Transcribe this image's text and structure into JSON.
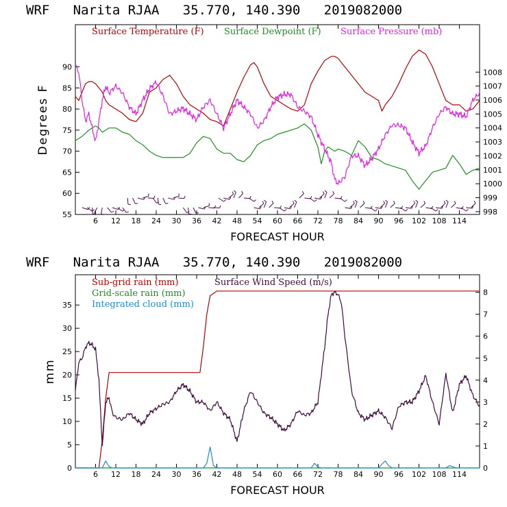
{
  "chart_data": [
    {
      "type": "line",
      "title": "WRF   Narita RJAA   35.770, 140.390   2019082000",
      "xlabel": "FORECAST HOUR",
      "ylabel": "Degrees F",
      "xlim": [
        0,
        120
      ],
      "ylim": [
        55,
        100
      ],
      "y2lim": [
        997.8,
        1011.4
      ],
      "xticks": [
        "6",
        "12",
        "18",
        "24",
        "30",
        "36",
        "42",
        "48",
        "54",
        "60",
        "66",
        "72",
        "78",
        "84",
        "90",
        "96",
        "102",
        "108",
        "114"
      ],
      "yticks": [
        "55",
        "60",
        "65",
        "70",
        "75",
        "80",
        "85",
        "90"
      ],
      "y2ticks": [
        "998",
        "999",
        "1000",
        "1001",
        "1002",
        "1003",
        "1004",
        "1005",
        "1006",
        "1007",
        "1008"
      ],
      "colors": {
        "temp": "#b30000",
        "dew": "#1f8c1f",
        "press": "#e020e0",
        "barb": "#4a0a4a"
      },
      "series": [
        {
          "name": "Surface Temperature (F)",
          "axis": "left",
          "x": [
            0,
            1,
            2,
            3,
            4,
            5,
            6,
            7,
            8,
            9,
            10,
            12,
            14,
            16,
            18,
            20,
            22,
            24,
            26,
            28,
            30,
            32,
            34,
            36,
            38,
            40,
            42,
            44,
            46,
            48,
            50,
            52,
            53,
            54,
            56,
            58,
            60,
            62,
            64,
            66,
            68,
            70,
            72,
            74,
            76,
            77,
            78,
            80,
            82,
            84,
            86,
            88,
            90,
            91,
            92,
            94,
            96,
            98,
            100,
            102,
            104,
            106,
            108,
            110,
            112,
            114,
            116,
            118,
            120
          ],
          "values": [
            83,
            82,
            84,
            86,
            86.5,
            86.5,
            86,
            85,
            84,
            82,
            81,
            80,
            79,
            77.5,
            77,
            79,
            84,
            85,
            87,
            88,
            86,
            83,
            81,
            80,
            79,
            77.5,
            77,
            76,
            80,
            84,
            87.5,
            90.5,
            91,
            90,
            86,
            83,
            82,
            81,
            80,
            79.5,
            81,
            86,
            89,
            91.5,
            92.5,
            92.5,
            92,
            90,
            88,
            86,
            84,
            83,
            82,
            79.5,
            81,
            83,
            86,
            89.5,
            92.5,
            94,
            93,
            90,
            86,
            82,
            81,
            81,
            79.5,
            80,
            82
          ]
        },
        {
          "name": "Surface Dewpoint (F)",
          "axis": "left",
          "x": [
            0,
            2,
            4,
            6,
            7,
            8,
            10,
            12,
            14,
            16,
            18,
            20,
            22,
            24,
            26,
            28,
            30,
            32,
            34,
            36,
            38,
            40,
            42,
            44,
            46,
            48,
            50,
            52,
            54,
            56,
            58,
            60,
            62,
            64,
            66,
            68,
            70,
            72,
            73,
            74,
            75,
            76,
            77,
            78,
            80,
            82,
            84,
            86,
            88,
            90,
            92,
            94,
            96,
            98,
            100,
            102,
            104,
            106,
            108,
            110,
            112,
            114,
            116,
            118,
            120
          ],
          "values": [
            72.5,
            73.5,
            75,
            76,
            75.5,
            74.5,
            75.5,
            75.5,
            74.5,
            74,
            72.5,
            71.5,
            70,
            69,
            68.5,
            68.5,
            68.5,
            68.5,
            69.5,
            72,
            73.5,
            73,
            70.5,
            69.5,
            69.5,
            68,
            67.5,
            69,
            71.5,
            72.5,
            73,
            74,
            74.5,
            75,
            75.5,
            76.5,
            75,
            71,
            67,
            70,
            71,
            70.5,
            70,
            70.5,
            70,
            69,
            72.5,
            71,
            68.5,
            68,
            67,
            66.5,
            66,
            65.5,
            63,
            61,
            63,
            65,
            65.5,
            66,
            69,
            67,
            64.5,
            65.5,
            66
          ]
        },
        {
          "name": "Surface Pressure (mb)",
          "axis": "right",
          "x": [
            0,
            1,
            2,
            3,
            4,
            5,
            6,
            7,
            8,
            9,
            10,
            12,
            14,
            16,
            18,
            20,
            22,
            24,
            26,
            28,
            30,
            32,
            34,
            36,
            38,
            40,
            42,
            44,
            46,
            48,
            50,
            52,
            54,
            56,
            58,
            60,
            62,
            64,
            66,
            68,
            70,
            72,
            74,
            76,
            77,
            78,
            80,
            82,
            84,
            86,
            88,
            90,
            92,
            94,
            96,
            98,
            100,
            102,
            104,
            106,
            108,
            110,
            112,
            114,
            116,
            118,
            120
          ],
          "values": [
            1008.5,
            1008,
            1006,
            1004.5,
            1005,
            1004,
            1003,
            1004.5,
            1006,
            1007,
            1006.5,
            1007,
            1006.5,
            1005.5,
            1005,
            1006,
            1006.8,
            1007.3,
            1006.3,
            1005,
            1005.2,
            1005.4,
            1005,
            1004.6,
            1005.5,
            1006,
            1005,
            1004,
            1005,
            1006,
            1005.5,
            1005,
            1004,
            1004.5,
            1005.5,
            1006.2,
            1006.4,
            1006.4,
            1005.5,
            1005.2,
            1004.8,
            1003.5,
            1002.5,
            1001.5,
            1000.3,
            1000,
            1000.5,
            1002,
            1002,
            1001.3,
            1001.8,
            1002.5,
            1003.5,
            1004.2,
            1004.2,
            1004,
            1003,
            1002.2,
            1002.7,
            1004,
            1005,
            1005.5,
            1005,
            1005,
            1004.8,
            1006,
            1006.5
          ]
        }
      ],
      "wind_barbs": "wind barbs drawn along the bottom of the panel"
    },
    {
      "type": "line",
      "title": "WRF   Narita RJAA   35.770, 140.390   2019082000",
      "xlabel": "FORECAST HOUR",
      "ylabel": "mm",
      "xlim": [
        0,
        120
      ],
      "ylim": [
        0,
        41.5
      ],
      "y2lim": [
        0,
        8.8
      ],
      "xticks": [
        "6",
        "12",
        "18",
        "24",
        "30",
        "36",
        "42",
        "48",
        "54",
        "60",
        "66",
        "72",
        "78",
        "84",
        "90",
        "96",
        "102",
        "108",
        "114"
      ],
      "yticks": [
        "0",
        "5",
        "10",
        "15",
        "20",
        "25",
        "30",
        "35"
      ],
      "y2ticks": [
        "0",
        "1",
        "2",
        "3",
        "4",
        "5",
        "6",
        "7",
        "8"
      ],
      "colors": {
        "subgrid": "#b30000",
        "grid": "#1f8c1f",
        "cloud": "#1a8ad4",
        "wind": "#3b0a3b"
      },
      "series": [
        {
          "name": "Sub-grid rain (mm)",
          "axis": "left",
          "x": [
            0,
            7,
            8,
            9,
            10,
            37,
            38,
            39,
            40,
            41,
            42,
            120
          ],
          "values": [
            0,
            0,
            6,
            15,
            20.5,
            20.5,
            26,
            33,
            37,
            37.5,
            38,
            38
          ]
        },
        {
          "name": "Grid-scale rain (mm)",
          "axis": "left",
          "x": [
            0,
            120
          ],
          "values": [
            0,
            0
          ]
        },
        {
          "name": "Integrated cloud (mm)",
          "axis": "left",
          "x": [
            0,
            8,
            9,
            10,
            11,
            38,
            39,
            40,
            41,
            42,
            70,
            71,
            72,
            73,
            90,
            91,
            92,
            93,
            94,
            110,
            111,
            112,
            113,
            120
          ],
          "values": [
            0,
            0,
            1.5,
            0.3,
            0,
            0,
            1,
            4.5,
            0.5,
            0,
            0,
            1,
            0.2,
            0,
            0,
            0.8,
            1.5,
            0.5,
            0,
            0,
            0.5,
            0.3,
            0,
            0
          ]
        },
        {
          "name": "Surface Wind Speed (m/s)",
          "axis": "right",
          "x": [
            0,
            1,
            2,
            3,
            4,
            5,
            6,
            7,
            8,
            9,
            10,
            11,
            12,
            14,
            16,
            18,
            20,
            22,
            24,
            26,
            28,
            30,
            32,
            34,
            36,
            38,
            40,
            42,
            44,
            46,
            48,
            50,
            52,
            54,
            56,
            58,
            60,
            62,
            64,
            66,
            68,
            70,
            72,
            74,
            75,
            76,
            77,
            78,
            79,
            80,
            82,
            84,
            86,
            88,
            90,
            92,
            94,
            96,
            98,
            100,
            102,
            104,
            106,
            108,
            110,
            112,
            114,
            116,
            118,
            120
          ],
          "values": [
            3.5,
            4.8,
            5,
            5.5,
            5.7,
            5.6,
            5.4,
            4,
            1,
            3,
            3.2,
            2.5,
            2.3,
            2.2,
            2.5,
            2.2,
            2,
            2.5,
            2.7,
            2.9,
            3,
            3.5,
            3.8,
            3.5,
            3,
            3,
            2.6,
            3,
            2.5,
            2.2,
            1.2,
            2.6,
            3.5,
            3,
            2.5,
            2.3,
            2,
            1.7,
            2,
            2.6,
            2.4,
            2.5,
            3,
            5.5,
            7,
            7.9,
            8,
            7.9,
            7.5,
            6,
            3.5,
            2.5,
            2.2,
            2.4,
            2.6,
            2.3,
            1.8,
            2.8,
            3,
            3,
            3.5,
            4.2,
            3,
            2,
            4.3,
            2.5,
            3.8,
            4.2,
            3.3,
            2.8
          ]
        }
      ]
    }
  ]
}
